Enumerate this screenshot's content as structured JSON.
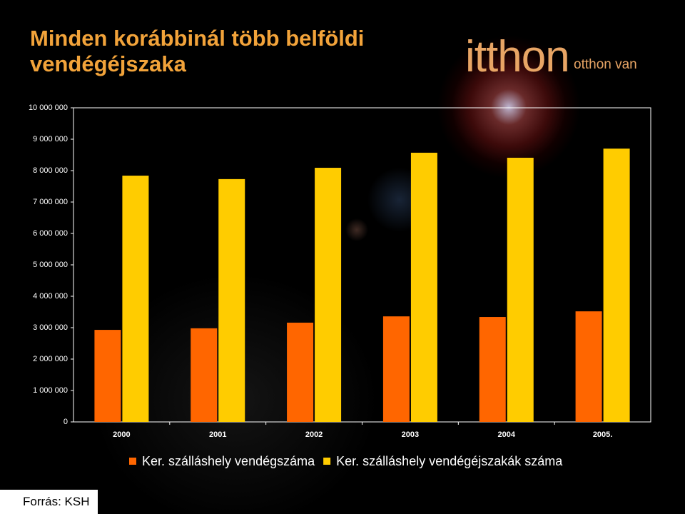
{
  "chart_data": {
    "type": "bar",
    "title": "Minden korábbinál több belföldi vendégéjszaka",
    "categories": [
      "2000",
      "2001",
      "2002",
      "2003",
      "2004",
      "2005."
    ],
    "series": [
      {
        "name": "Ker. szálláshely vendégszáma",
        "color": "#ff6600",
        "values": [
          2930000,
          2980000,
          3160000,
          3360000,
          3340000,
          3520000
        ]
      },
      {
        "name": "Ker. szálláshely vendégéjszakák száma",
        "color": "#ffcc00",
        "values": [
          7840000,
          7730000,
          8090000,
          8570000,
          8410000,
          8700000
        ]
      }
    ],
    "ylim": [
      0,
      10000000
    ],
    "yticks": [
      0,
      {
        "value": 1000000,
        "label": "1 000 000"
      },
      {
        "value": 2000000,
        "label": "2 000 000"
      },
      {
        "value": 3000000,
        "label": "3 000 000"
      },
      {
        "value": 4000000,
        "label": "4 000 000"
      },
      {
        "value": 5000000,
        "label": "5 000 000"
      },
      {
        "value": 6000000,
        "label": "6 000 000"
      },
      {
        "value": 7000000,
        "label": "7 000 000"
      },
      {
        "value": 8000000,
        "label": "8 000 000"
      },
      {
        "value": 9000000,
        "label": "9 000 000"
      },
      {
        "value": 10000000,
        "label": "10 000 000"
      }
    ],
    "grid": false,
    "legend": "bottom"
  },
  "logo": {
    "brand": "itthon",
    "tagline": "otthon van"
  },
  "source": "Forrás: KSH"
}
